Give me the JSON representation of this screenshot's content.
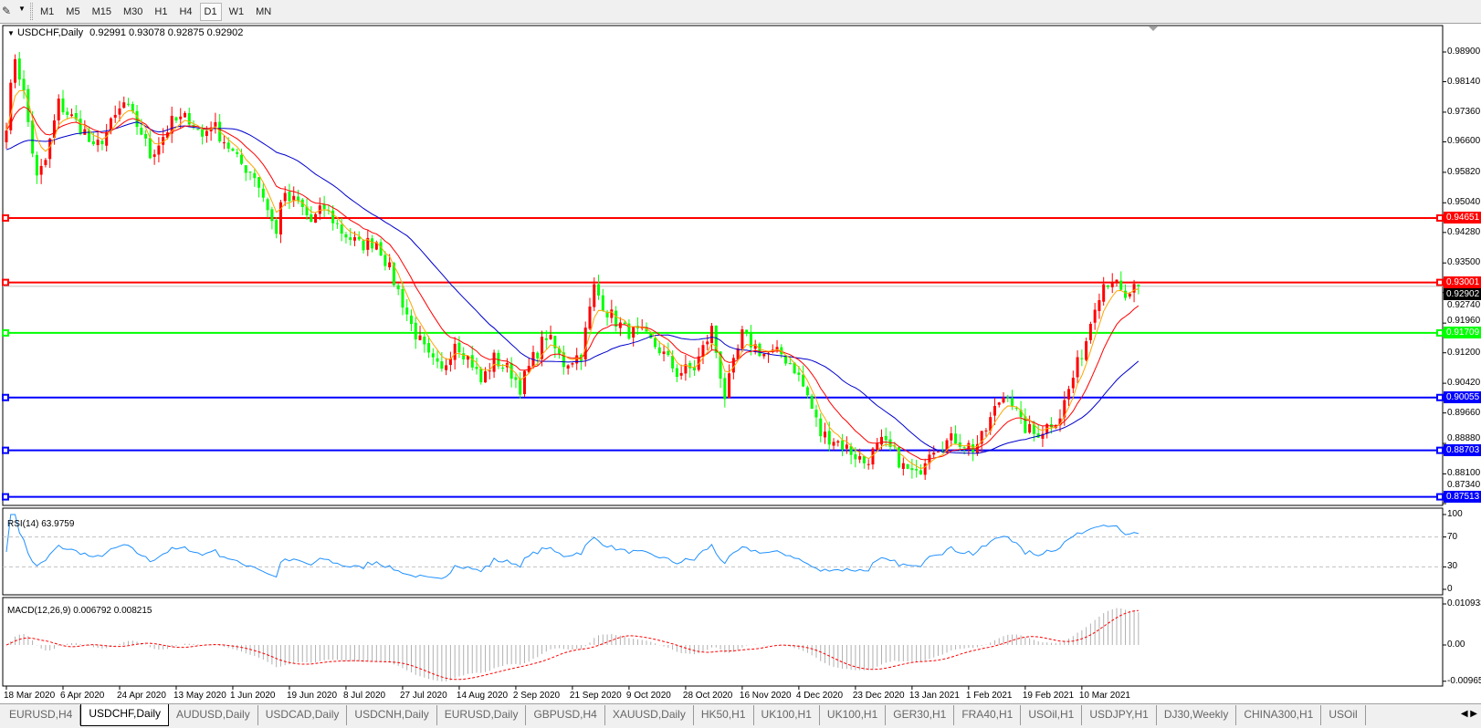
{
  "toolbar": {
    "timeframes": [
      "M1",
      "M5",
      "M15",
      "M30",
      "H1",
      "H4",
      "D1",
      "W1",
      "MN"
    ],
    "active": "D1"
  },
  "chart": {
    "symbol_title": "USDCHF,Daily",
    "ohlc": "0.92991 0.93078 0.92875 0.92902",
    "price_ticks": [
      "0.98900",
      "0.98140",
      "0.97360",
      "0.96600",
      "0.95820",
      "0.95040",
      "0.94280",
      "0.93500",
      "0.92740",
      "0.91960",
      "0.91200",
      "0.90420",
      "0.89660",
      "0.88880",
      "0.88100",
      "0.87340"
    ],
    "current_price": "0.92902",
    "hlines": [
      {
        "price": "0.94651",
        "color": "#ff0000"
      },
      {
        "price": "0.93001",
        "color": "#ff0000"
      },
      {
        "price": "0.91709",
        "color": "#00ff00"
      },
      {
        "price": "0.90055",
        "color": "#0000ff"
      },
      {
        "price": "0.88703",
        "color": "#0000ff"
      },
      {
        "price": "0.87513",
        "color": "#0000ff"
      }
    ],
    "date_ticks": [
      "18 Mar 2020",
      "6 Apr 2020",
      "24 Apr 2020",
      "13 May 2020",
      "1 Jun 2020",
      "19 Jun 2020",
      "8 Jul 2020",
      "27 Jul 2020",
      "14 Aug 2020",
      "2 Sep 2020",
      "21 Sep 2020",
      "9 Oct 2020",
      "28 Oct 2020",
      "16 Nov 2020",
      "4 Dec 2020",
      "23 Dec 2020",
      "13 Jan 2021",
      "1 Feb 2021",
      "19 Feb 2021",
      "10 Mar 2021"
    ],
    "colors": {
      "bull": "#ff0000",
      "bear": "#00ff00",
      "ma_fast": "#ffa500",
      "ma_mid": "#ff0000",
      "ma_slow": "#0000cd"
    }
  },
  "rsi": {
    "label": "RSI(14) 63.9759",
    "ticks": [
      "100",
      "70",
      "30",
      "0"
    ],
    "color": "#1e90ff"
  },
  "macd": {
    "label": "MACD(12,26,9) 0.006792 0.008215",
    "ticks": [
      "0.010933",
      "0.00",
      "-0.009653"
    ]
  },
  "tabs": [
    "EURUSD,H4",
    "USDCHF,Daily",
    "AUDUSD,Daily",
    "USDCAD,Daily",
    "USDCNH,Daily",
    "EURUSD,Daily",
    "GBPUSD,H4",
    "XAUUSD,Daily",
    "HK50,H1",
    "UK100,H1",
    "UK100,H1",
    "GER30,H1",
    "FRA40,H1",
    "USOil,H1",
    "USDJPY,H1",
    "DJ30,Weekly",
    "CHINA300,H1",
    "USOil"
  ],
  "active_tab": "USDCHF,Daily",
  "chart_data": {
    "type": "candlestick",
    "symbol": "USDCHF",
    "approx_close_path": [
      [
        "2020-03-18",
        0.9709
      ],
      [
        "2020-03-20",
        0.988
      ],
      [
        "2020-03-24",
        0.9782
      ],
      [
        "2020-03-27",
        0.9564
      ],
      [
        "2020-03-31",
        0.9612
      ],
      [
        "2020-04-03",
        0.9758
      ],
      [
        "2020-04-08",
        0.9722
      ],
      [
        "2020-04-13",
        0.9685
      ],
      [
        "2020-04-15",
        0.9637
      ],
      [
        "2020-04-20",
        0.9685
      ],
      [
        "2020-04-24",
        0.9758
      ],
      [
        "2020-04-30",
        0.9685
      ],
      [
        "2020-05-04",
        0.9625
      ],
      [
        "2020-05-11",
        0.9709
      ],
      [
        "2020-05-15",
        0.9722
      ],
      [
        "2020-05-20",
        0.9673
      ],
      [
        "2020-05-22",
        0.9709
      ],
      [
        "2020-05-28",
        0.9649
      ],
      [
        "2020-06-01",
        0.9612
      ],
      [
        "2020-06-05",
        0.9576
      ],
      [
        "2020-06-10",
        0.9492
      ],
      [
        "2020-06-12",
        0.942
      ],
      [
        "2020-06-15",
        0.9516
      ],
      [
        "2020-06-19",
        0.9504
      ],
      [
        "2020-06-24",
        0.9455
      ],
      [
        "2020-06-29",
        0.9492
      ],
      [
        "2020-07-03",
        0.9431
      ],
      [
        "2020-07-09",
        0.9395
      ],
      [
        "2020-07-15",
        0.9407
      ],
      [
        "2020-07-17",
        0.9359
      ],
      [
        "2020-07-23",
        0.925
      ],
      [
        "2020-07-27",
        0.919
      ],
      [
        "2020-07-31",
        0.9105
      ],
      [
        "2020-08-05",
        0.9069
      ],
      [
        "2020-08-10",
        0.9153
      ],
      [
        "2020-08-14",
        0.9093
      ],
      [
        "2020-08-18",
        0.9045
      ],
      [
        "2020-08-21",
        0.9105
      ],
      [
        "2020-08-27",
        0.9069
      ],
      [
        "2020-08-31",
        0.9033
      ],
      [
        "2020-09-03",
        0.9105
      ],
      [
        "2020-09-08",
        0.9165
      ],
      [
        "2020-09-14",
        0.9093
      ],
      [
        "2020-09-18",
        0.9117
      ],
      [
        "2020-09-23",
        0.9287
      ],
      [
        "2020-09-28",
        0.9226
      ],
      [
        "2020-10-02",
        0.9178
      ],
      [
        "2020-10-08",
        0.9165
      ],
      [
        "2020-10-14",
        0.9129
      ],
      [
        "2020-10-20",
        0.9069
      ],
      [
        "2020-10-26",
        0.9081
      ],
      [
        "2020-10-30",
        0.918
      ],
      [
        "2020-11-04",
        0.9009
      ],
      [
        "2020-11-10",
        0.9165
      ],
      [
        "2020-11-17",
        0.9117
      ],
      [
        "2020-11-23",
        0.9117
      ],
      [
        "2020-11-26",
        0.9081
      ],
      [
        "2020-12-01",
        0.9009
      ],
      [
        "2020-12-04",
        0.8912
      ],
      [
        "2020-12-09",
        0.89
      ],
      [
        "2020-12-14",
        0.8876
      ],
      [
        "2020-12-18",
        0.884
      ],
      [
        "2020-12-24",
        0.8888
      ],
      [
        "2020-12-29",
        0.8864
      ],
      [
        "2020-12-31",
        0.8827
      ],
      [
        "2021-01-05",
        0.8803
      ],
      [
        "2021-01-08",
        0.8876
      ],
      [
        "2021-01-13",
        0.8888
      ],
      [
        "2021-01-18",
        0.89
      ],
      [
        "2021-01-22",
        0.8876
      ],
      [
        "2021-01-26",
        0.89
      ],
      [
        "2021-02-01",
        0.8997
      ],
      [
        "2021-02-03",
        0.9021
      ],
      [
        "2021-02-08",
        0.8937
      ],
      [
        "2021-02-11",
        0.8912
      ],
      [
        "2021-02-15",
        0.8924
      ],
      [
        "2021-02-19",
        0.8961
      ],
      [
        "2021-02-24",
        0.9057
      ],
      [
        "2021-03-01",
        0.9153
      ],
      [
        "2021-03-03",
        0.925
      ],
      [
        "2021-03-05",
        0.9299
      ],
      [
        "2021-03-09",
        0.931
      ],
      [
        "2021-03-12",
        0.925
      ],
      [
        "2021-03-15",
        0.9274
      ],
      [
        "2021-03-17",
        0.929
      ]
    ]
  }
}
